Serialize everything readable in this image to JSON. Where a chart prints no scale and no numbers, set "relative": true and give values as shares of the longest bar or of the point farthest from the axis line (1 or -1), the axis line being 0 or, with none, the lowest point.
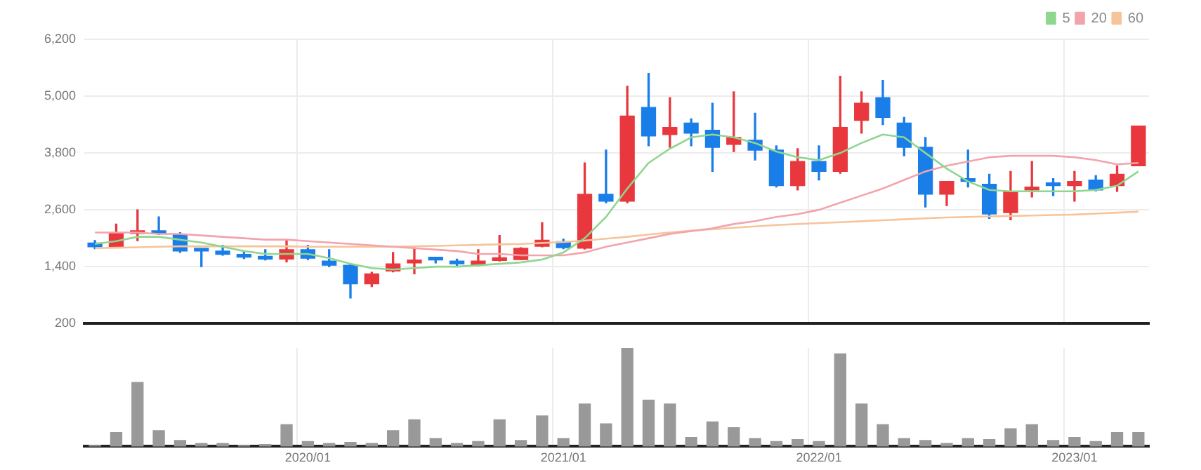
{
  "chart_data": [
    {
      "type": "candlestick",
      "categories": [
        null,
        null,
        null,
        null,
        null,
        null,
        null,
        null,
        null,
        null,
        "2020/01",
        null,
        null,
        null,
        null,
        null,
        null,
        null,
        null,
        null,
        null,
        null,
        "2021/01",
        null,
        null,
        null,
        null,
        null,
        null,
        null,
        null,
        null,
        null,
        null,
        "2022/01",
        null,
        null,
        null,
        null,
        null,
        null,
        null,
        null,
        null,
        null,
        null,
        "2023/01",
        null,
        null,
        null
      ],
      "ohlc": [
        [
          1900,
          1950,
          1780,
          1820
        ],
        [
          1820,
          2300,
          1800,
          2120
        ],
        [
          2100,
          2600,
          1950,
          2150
        ],
        [
          2150,
          2450,
          2080,
          2100
        ],
        [
          2090,
          2120,
          1700,
          1730
        ],
        [
          1760,
          1760,
          1400,
          1730
        ],
        [
          1730,
          1850,
          1640,
          1660
        ],
        [
          1660,
          1720,
          1570,
          1600
        ],
        [
          1610,
          1760,
          1540,
          1560
        ],
        [
          1560,
          1970,
          1500,
          1760
        ],
        [
          1760,
          1850,
          1550,
          1580
        ],
        [
          1520,
          1760,
          1400,
          1430
        ],
        [
          1430,
          1450,
          740,
          1040
        ],
        [
          1040,
          1280,
          980,
          1250
        ],
        [
          1310,
          1700,
          1290,
          1460
        ],
        [
          1480,
          1800,
          1250,
          1530
        ],
        [
          1570,
          1600,
          1480,
          1540
        ],
        [
          1510,
          1560,
          1400,
          1460
        ],
        [
          1440,
          1760,
          1420,
          1520
        ],
        [
          1530,
          2060,
          1520,
          1570
        ],
        [
          1550,
          1800,
          1550,
          1790
        ],
        [
          1830,
          2330,
          1820,
          1960
        ],
        [
          1930,
          1980,
          1780,
          1800
        ],
        [
          1790,
          3590,
          1770,
          2930
        ],
        [
          2930,
          3860,
          2750,
          2780
        ],
        [
          2780,
          5210,
          2750,
          4580
        ],
        [
          4760,
          5480,
          3950,
          4160
        ],
        [
          4190,
          4970,
          3920,
          4340
        ],
        [
          4430,
          4520,
          3950,
          4220
        ],
        [
          4280,
          4850,
          3410,
          3920
        ],
        [
          3980,
          5090,
          3830,
          4130
        ],
        [
          4070,
          4640,
          3650,
          3860
        ],
        [
          3860,
          3950,
          3080,
          3110
        ],
        [
          3110,
          3890,
          3020,
          3620
        ],
        [
          3620,
          3950,
          3230,
          3410
        ],
        [
          3410,
          5420,
          3370,
          4340
        ],
        [
          4490,
          5090,
          4220,
          4850
        ],
        [
          4970,
          5330,
          4400,
          4550
        ],
        [
          4430,
          4550,
          3740,
          3920
        ],
        [
          3920,
          4130,
          2660,
          2930
        ],
        [
          2930,
          3200,
          2690,
          3200
        ],
        [
          3260,
          3860,
          3080,
          3200
        ],
        [
          3140,
          3350,
          2420,
          2510
        ],
        [
          2540,
          3410,
          2390,
          2990
        ],
        [
          3020,
          3620,
          2870,
          3080
        ],
        [
          3140,
          3260,
          2900,
          3110
        ],
        [
          3110,
          3410,
          2780,
          3200
        ],
        [
          3230,
          3320,
          3000,
          3020
        ],
        [
          3110,
          3530,
          2990,
          3350
        ],
        [
          3530,
          4370,
          3530,
          4370
        ]
      ],
      "colors": [
        "#1a7ee8",
        "#e8383d",
        "#e8383d",
        "#1a7ee8",
        "#1a7ee8",
        "#1a7ee8",
        "#1a7ee8",
        "#1a7ee8",
        "#1a7ee8",
        "#e8383d",
        "#1a7ee8",
        "#1a7ee8",
        "#1a7ee8",
        "#e8383d",
        "#e8383d",
        "#e8383d",
        "#1a7ee8",
        "#1a7ee8",
        "#e8383d",
        "#e8383d",
        "#e8383d",
        "#e8383d",
        "#1a7ee8",
        "#e8383d",
        "#1a7ee8",
        "#e8383d",
        "#1a7ee8",
        "#e8383d",
        "#1a7ee8",
        "#1a7ee8",
        "#e8383d",
        "#1a7ee8",
        "#1a7ee8",
        "#e8383d",
        "#1a7ee8",
        "#e8383d",
        "#e8383d",
        "#1a7ee8",
        "#1a7ee8",
        "#1a7ee8",
        "#e8383d",
        "#1a7ee8",
        "#1a7ee8",
        "#e8383d",
        "#e8383d",
        "#1a7ee8",
        "#e8383d",
        "#1a7ee8",
        "#e8383d",
        "#e8383d"
      ],
      "series": [
        {
          "name": "5",
          "type": "line",
          "color": "#8fd68f",
          "values": [
            1880,
            1940,
            2030,
            2030,
            1970,
            1910,
            1820,
            1730,
            1670,
            1670,
            1670,
            1580,
            1460,
            1370,
            1340,
            1370,
            1400,
            1400,
            1430,
            1460,
            1490,
            1550,
            1700,
            2000,
            2450,
            3050,
            3590,
            3890,
            4130,
            4190,
            4130,
            4010,
            3830,
            3710,
            3650,
            3800,
            4010,
            4190,
            4130,
            3800,
            3470,
            3200,
            3020,
            2990,
            2990,
            2990,
            2990,
            3020,
            3110,
            3410
          ]
        },
        {
          "name": "20",
          "type": "line",
          "color": "#f3a3ab",
          "values": [
            2120,
            2120,
            2120,
            2090,
            2090,
            2060,
            2030,
            2000,
            1970,
            1970,
            1940,
            1910,
            1880,
            1850,
            1820,
            1790,
            1760,
            1730,
            1670,
            1670,
            1640,
            1640,
            1640,
            1700,
            1820,
            1910,
            2000,
            2090,
            2150,
            2210,
            2300,
            2360,
            2450,
            2510,
            2600,
            2750,
            2900,
            3050,
            3230,
            3410,
            3530,
            3620,
            3710,
            3740,
            3740,
            3740,
            3710,
            3650,
            3560,
            3590
          ]
        },
        {
          "name": "60",
          "type": "line",
          "color": "#f5c49a",
          "values": [
            1790,
            1800,
            1810,
            1820,
            1830,
            1830,
            1830,
            1830,
            1830,
            1830,
            1820,
            1820,
            1820,
            1820,
            1820,
            1830,
            1840,
            1850,
            1860,
            1870,
            1880,
            1900,
            1920,
            1950,
            1990,
            2030,
            2080,
            2120,
            2160,
            2190,
            2220,
            2250,
            2280,
            2300,
            2320,
            2340,
            2360,
            2380,
            2400,
            2420,
            2440,
            2450,
            2460,
            2470,
            2480,
            2490,
            2500,
            2520,
            2540,
            2560
          ]
        }
      ],
      "ylim": [
        200,
        6200
      ],
      "yticks": [
        200,
        {
          "value": 1400,
          "label": "1,400"
        },
        {
          "value": 2600,
          "label": "2,600"
        },
        {
          "value": 3800,
          "label": "3,800"
        },
        {
          "value": 5000,
          "label": "5,000"
        },
        {
          "value": 6200,
          "label": "6,200"
        }
      ],
      "grid": true,
      "legend": "top right",
      "marker": "none",
      "tick_labels": "y"
    },
    {
      "type": "bar",
      "relative": true,
      "categories": [
        null,
        null,
        null,
        null,
        null,
        null,
        null,
        null,
        null,
        null,
        "2020/01",
        null,
        null,
        null,
        null,
        null,
        null,
        null,
        null,
        null,
        null,
        null,
        "2021/01",
        null,
        null,
        null,
        null,
        null,
        null,
        null,
        null,
        null,
        null,
        null,
        "2022/01",
        null,
        null,
        null,
        null,
        null,
        null,
        null,
        null,
        null,
        null,
        null,
        "2023/01",
        null,
        null,
        null
      ],
      "values": [
        0.01,
        0.14,
        0.65,
        0.16,
        0.06,
        0.03,
        0.03,
        0.01,
        0.02,
        0.22,
        0.05,
        0.03,
        0.04,
        0.03,
        0.16,
        0.27,
        0.08,
        0.03,
        0.05,
        0.27,
        0.06,
        0.31,
        0.08,
        0.43,
        0.23,
        1,
        0.47,
        0.43,
        0.09,
        0.25,
        0.19,
        0.08,
        0.05,
        0.07,
        0.05,
        0.94,
        0.43,
        0.22,
        0.08,
        0.06,
        0.03,
        0.08,
        0.07,
        0.18,
        0.22,
        0.06,
        0.09,
        0.05,
        0.14,
        0.14
      ],
      "color": "#999999",
      "grid": "x",
      "tick_labels": "x"
    }
  ]
}
